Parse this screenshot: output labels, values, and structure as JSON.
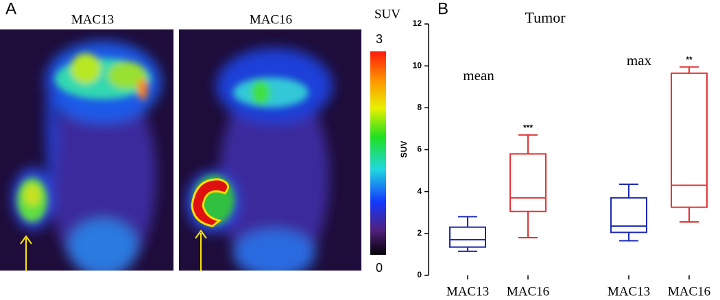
{
  "panel_a": {
    "label": "A",
    "images": [
      "MAC13",
      "MAC16"
    ],
    "colorbar": {
      "title": "SUV",
      "range": [
        0,
        3
      ]
    }
  },
  "chart_data": {
    "type": "box",
    "label": "B",
    "title": "Tumor",
    "y_label": "SUV",
    "ylim": [
      0,
      12
    ],
    "yticks": [
      0,
      2,
      4,
      6,
      8,
      10,
      12
    ],
    "groups": [
      "mean",
      "max"
    ],
    "categories": [
      "MAC13",
      "MAC16",
      "MAC13",
      "MAC16"
    ],
    "boxes": [
      {
        "group": 0,
        "color": "#1c2ab4",
        "min": 1.15,
        "q1": 1.35,
        "median": 1.7,
        "q3": 2.3,
        "max": 2.8
      },
      {
        "group": 0,
        "color": "#e23434",
        "min": 1.8,
        "q1": 3.05,
        "median": 3.7,
        "q3": 5.8,
        "max": 6.7,
        "significance": "***"
      },
      {
        "group": 1,
        "color": "#1c2ab4",
        "min": 1.65,
        "q1": 2.05,
        "median": 2.35,
        "q3": 3.7,
        "max": 4.35
      },
      {
        "group": 1,
        "color": "#e23434",
        "min": 2.55,
        "q1": 3.25,
        "median": 4.3,
        "q3": 9.65,
        "max": 9.95,
        "significance": "**"
      }
    ]
  }
}
